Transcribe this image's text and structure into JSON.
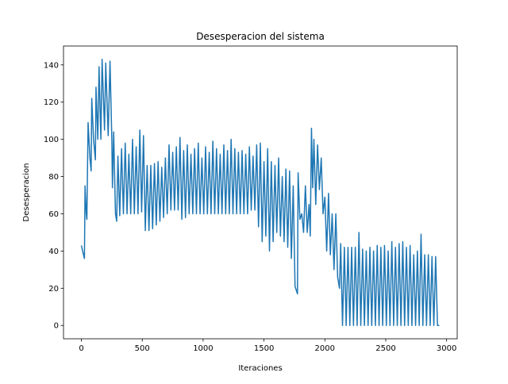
{
  "chart_data": {
    "type": "line",
    "title": "Desesperacion del sistema",
    "xlabel": "Iteraciones",
    "ylabel": "Desesperacion",
    "x": [
      0,
      10,
      25,
      30,
      40,
      45,
      55,
      70,
      80,
      85,
      100,
      115,
      120,
      135,
      145,
      160,
      170,
      190,
      200,
      220,
      235,
      250,
      255,
      265,
      280,
      290,
      300,
      315,
      330,
      345,
      360,
      375,
      390,
      405,
      420,
      435,
      450,
      465,
      480,
      495,
      510,
      525,
      540,
      555,
      570,
      585,
      600,
      615,
      630,
      645,
      660,
      675,
      690,
      705,
      720,
      735,
      750,
      765,
      780,
      795,
      810,
      825,
      840,
      855,
      870,
      885,
      900,
      915,
      930,
      945,
      960,
      975,
      990,
      1005,
      1020,
      1035,
      1050,
      1065,
      1080,
      1095,
      1110,
      1125,
      1140,
      1155,
      1170,
      1185,
      1200,
      1215,
      1230,
      1245,
      1260,
      1275,
      1290,
      1305,
      1320,
      1335,
      1350,
      1365,
      1380,
      1395,
      1410,
      1425,
      1440,
      1455,
      1470,
      1485,
      1500,
      1515,
      1530,
      1545,
      1560,
      1575,
      1590,
      1605,
      1620,
      1635,
      1650,
      1665,
      1680,
      1695,
      1710,
      1725,
      1740,
      1755,
      1775,
      1780,
      1795,
      1810,
      1825,
      1840,
      1855,
      1870,
      1880,
      1890,
      1900,
      1910,
      1925,
      1940,
      1955,
      1970,
      1985,
      2000,
      2015,
      2030,
      2045,
      2060,
      2075,
      2090,
      2105,
      2120,
      2130,
      2145,
      2160,
      2175,
      2190,
      2205,
      2220,
      2235,
      2250,
      2265,
      2280,
      2295,
      2310,
      2325,
      2340,
      2355,
      2370,
      2385,
      2400,
      2415,
      2430,
      2445,
      2460,
      2475,
      2490,
      2505,
      2520,
      2535,
      2550,
      2565,
      2580,
      2595,
      2610,
      2625,
      2640,
      2655,
      2670,
      2685,
      2700,
      2715,
      2730,
      2745,
      2760,
      2775,
      2790,
      2805,
      2820,
      2835,
      2850,
      2865,
      2880,
      2895,
      2910,
      2925,
      2940
    ],
    "series": [
      {
        "name": "Desesperacion",
        "color": "#1f77b4",
        "values": [
          43,
          40,
          36,
          75,
          60,
          57,
          109,
          90,
          83,
          122,
          100,
          89,
          128,
          100,
          139,
          100,
          143,
          105,
          141,
          102,
          142,
          100,
          74,
          104,
          60,
          56,
          91,
          59,
          95,
          60,
          98,
          60,
          92,
          60,
          100,
          60,
          96,
          60,
          105,
          61,
          102,
          51,
          86,
          51,
          86,
          52,
          87,
          54,
          88,
          56,
          85,
          58,
          90,
          60,
          97,
          62,
          93,
          62,
          96,
          62,
          101,
          57,
          94,
          58,
          97,
          60,
          92,
          60,
          95,
          60,
          98,
          60,
          90,
          60,
          96,
          60,
          93,
          60,
          99,
          60,
          95,
          60,
          92,
          60,
          97,
          60,
          94,
          60,
          100,
          60,
          95,
          60,
          93,
          60,
          94,
          60,
          92,
          60,
          96,
          62,
          91,
          62,
          97,
          53,
          98,
          45,
          88,
          48,
          95,
          40,
          88,
          45,
          86,
          50,
          90,
          48,
          80,
          45,
          84,
          42,
          83,
          36,
          75,
          21,
          17,
          82,
          57,
          60,
          50,
          75,
          50,
          65,
          48,
          106,
          74,
          100,
          65,
          97,
          73,
          90,
          60,
          69,
          40,
          71,
          38,
          60,
          30,
          60,
          26,
          20,
          44,
          0,
          42,
          0,
          42,
          0,
          42,
          0,
          42,
          0,
          50,
          0,
          41,
          0,
          40,
          0,
          42,
          0,
          40,
          0,
          43,
          0,
          42,
          0,
          43,
          0,
          40,
          0,
          45,
          0,
          42,
          0,
          44,
          0,
          45,
          0,
          42,
          0,
          43,
          0,
          38,
          0,
          40,
          0,
          49,
          0,
          38,
          0,
          38,
          0,
          37,
          0,
          37,
          0,
          0
        ]
      }
    ],
    "xlim": [
      -147,
      3087
    ],
    "ylim": [
      -7.15,
      150.15
    ],
    "xticks": [
      0,
      500,
      1000,
      1500,
      2000,
      2500,
      3000
    ],
    "yticks": [
      0,
      20,
      40,
      60,
      80,
      100,
      120,
      140
    ]
  }
}
